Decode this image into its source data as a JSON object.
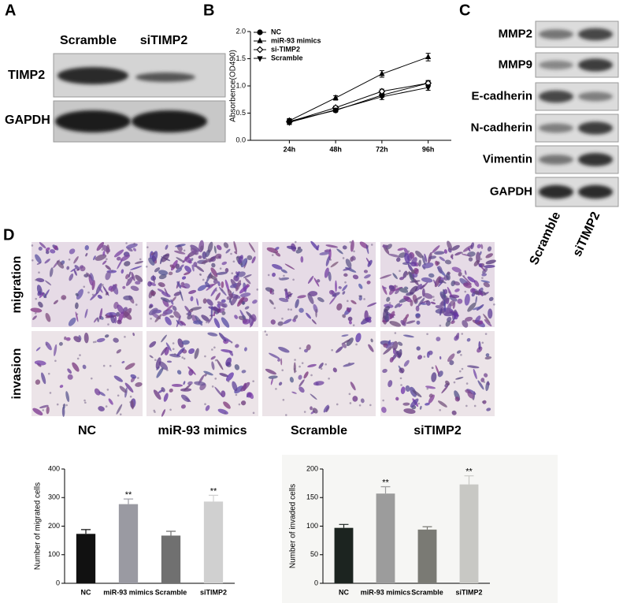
{
  "panel_labels": [
    "A",
    "B",
    "C",
    "D"
  ],
  "blot_a": {
    "columns": [
      "Scramble",
      "siTIMP2"
    ],
    "rows": [
      "TIMP2",
      "GAPDH"
    ]
  },
  "blot_c": {
    "rows": [
      "MMP2",
      "MMP9",
      "E-cadherin",
      "N-cadherin",
      "Vimentin",
      "GAPDH"
    ],
    "columns": [
      "Scramble",
      "siTIMP2"
    ]
  },
  "assay_d": {
    "rows": [
      "migration",
      "invasion"
    ],
    "columns": [
      "NC",
      "miR-93 mimics",
      "Scramble",
      "siTIMP2"
    ]
  },
  "chart_data": [
    {
      "type": "line",
      "y_label": "Absorbence(OD490)",
      "categories": [
        "24h",
        "48h",
        "72h",
        "96h"
      ],
      "ylim": [
        0,
        2.0
      ],
      "yticks": [
        {
          "value": 0,
          "label": "0.0"
        },
        {
          "value": 0.5,
          "label": "0.5"
        },
        {
          "value": 1.0,
          "label": "1.0"
        },
        {
          "value": 1.5,
          "label": "1.5"
        },
        {
          "value": 2.0,
          "label": "2.0"
        }
      ],
      "legend": "top-left",
      "series": [
        {
          "name": "NC",
          "color": "#000000",
          "marker": "circle",
          "values": [
            0.35,
            0.55,
            0.83,
            1.05
          ],
          "errors": [
            0.04,
            0.03,
            0.04,
            0.04
          ]
        },
        {
          "name": "miR-93 mimics",
          "color": "#000000",
          "marker": "triangle-up",
          "values": [
            0.36,
            0.78,
            1.22,
            1.53
          ],
          "errors": [
            0.04,
            0.04,
            0.06,
            0.07
          ]
        },
        {
          "name": "si-TIMP2",
          "color": "#000000",
          "marker": "diamond-open",
          "values": [
            0.34,
            0.6,
            0.9,
            1.05
          ],
          "errors": [
            0.04,
            0.03,
            0.04,
            0.05
          ]
        },
        {
          "name": "Scramble",
          "color": "#000000",
          "marker": "triangle-down",
          "values": [
            0.33,
            0.56,
            0.8,
            0.97
          ],
          "errors": [
            0.04,
            0.03,
            0.05,
            0.05
          ]
        }
      ]
    },
    {
      "type": "bar",
      "y_label": "Number of migrated cells",
      "categories": [
        "NC",
        "miR-93 mimics",
        "Scramble",
        "siTIMP2"
      ],
      "values": [
        173,
        277,
        167,
        286
      ],
      "errors": [
        15,
        18,
        15,
        22
      ],
      "significance": [
        null,
        "**",
        null,
        "**"
      ],
      "colors": [
        "#111111",
        "#9a9aa2",
        "#707070",
        "#d0d0d0"
      ],
      "ylim": [
        0,
        400
      ],
      "yticks": [
        0,
        100,
        200,
        300,
        400
      ]
    },
    {
      "type": "bar",
      "y_label": "Number of invaded cells",
      "categories": [
        "NC",
        "miR-93 mimics",
        "Scramble",
        "siTIMP2"
      ],
      "values": [
        97,
        157,
        94,
        173
      ],
      "errors": [
        6,
        12,
        5,
        15
      ],
      "significance": [
        null,
        "**",
        null,
        "**"
      ],
      "colors": [
        "#1c2420",
        "#9c9c9c",
        "#7a7a74",
        "#c8c8c4"
      ],
      "ylim": [
        0,
        200
      ],
      "yticks": [
        0,
        50,
        100,
        150,
        200
      ]
    }
  ]
}
